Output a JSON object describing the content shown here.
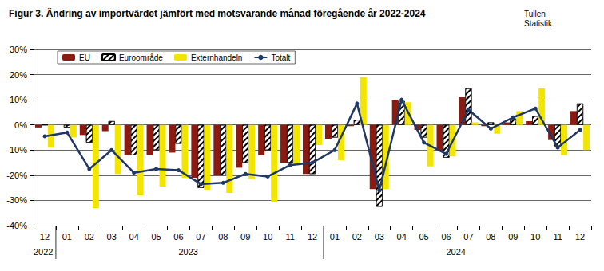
{
  "chart_data": {
    "type": "bar",
    "title": "Figur 3. Ändring av importvärdet jämfört med motsvarande månad föregående år 2022-2024",
    "source": [
      "Tullen",
      "Statistik"
    ],
    "categories": [
      "12",
      "01",
      "02",
      "03",
      "04",
      "05",
      "06",
      "07",
      "08",
      "09",
      "10",
      "11",
      "12",
      "01",
      "02",
      "03",
      "04",
      "05",
      "06",
      "07",
      "08",
      "09",
      "10",
      "11",
      "12"
    ],
    "years": [
      {
        "label": "2022",
        "from": 0,
        "to": 0
      },
      {
        "label": "2023",
        "from": 1,
        "to": 12
      },
      {
        "label": "2024",
        "from": 13,
        "to": 24
      }
    ],
    "series": [
      {
        "name": "EU",
        "type": "bar",
        "color": "#8b1a10",
        "values": [
          -1,
          0,
          -4,
          -2.5,
          -12,
          -12,
          -11,
          -21,
          -20,
          -17,
          -12,
          -15,
          -19.5,
          -5.5,
          -0.5,
          -25.5,
          10,
          -2,
          -10.5,
          11,
          -0.5,
          1,
          1.5,
          -6,
          5.5
        ]
      },
      {
        "name": "Euroområde",
        "type": "bar",
        "color": "#ffffff",
        "values": [
          0,
          -1,
          -7,
          1.5,
          -12,
          -10,
          -7.5,
          -25,
          -20,
          -15,
          -10,
          -15,
          -19.5,
          -5,
          2,
          -32.5,
          9.5,
          -5,
          -13,
          14.5,
          1,
          2.5,
          3.5,
          -8.5,
          8.5
        ]
      },
      {
        "name": "Externhandeln",
        "type": "bar",
        "color": "#f2e600",
        "values": [
          -9,
          -5,
          -33,
          -19.5,
          -28,
          -24.5,
          -21,
          -26,
          -27,
          -21.5,
          -30.5,
          -16,
          -8,
          -14,
          19,
          -25.5,
          9,
          -16.5,
          -12.5,
          1,
          -3.5,
          5.5,
          14.5,
          -12,
          -10
        ]
      },
      {
        "name": "Totalt",
        "type": "line",
        "color": "#1f3864",
        "marker": "circle",
        "values": [
          -4.5,
          -3,
          -17.5,
          -10,
          -19,
          -17.5,
          -18,
          -23.5,
          -23,
          -19.5,
          -20.5,
          -16,
          -15,
          -10,
          8.5,
          -26,
          10,
          -7,
          -11.5,
          6,
          -1.5,
          3,
          6.5,
          -9,
          -2
        ]
      }
    ],
    "ylim": [
      -40,
      30
    ],
    "yticks": [
      {
        "value": -40,
        "label": "-40%"
      },
      {
        "value": -30,
        "label": "-30%"
      },
      {
        "value": -20,
        "label": "-20%"
      },
      {
        "value": -10,
        "label": "-10%"
      },
      {
        "value": 0,
        "label": "0%"
      },
      {
        "value": 10,
        "label": "10%"
      },
      {
        "value": 20,
        "label": "20%"
      },
      {
        "value": 30,
        "label": "30%"
      }
    ],
    "grid": true,
    "legend": "upper left"
  }
}
